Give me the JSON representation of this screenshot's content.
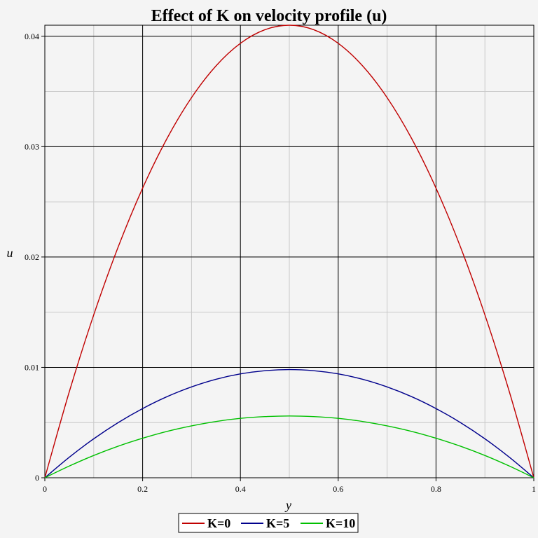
{
  "chart_data": {
    "type": "line",
    "title": "Effect of K on velocity profile (u)",
    "xlabel": "y",
    "ylabel": "u",
    "xlim": [
      0,
      1
    ],
    "ylim": [
      0,
      0.041
    ],
    "x_ticks": [
      0,
      0.2,
      0.4,
      0.6,
      0.8,
      1
    ],
    "x_tick_labels": [
      "0",
      "0.2",
      "0.4",
      "0.6",
      "0.8",
      "1"
    ],
    "y_ticks": [
      0,
      0.01,
      0.02,
      0.03,
      0.04
    ],
    "y_tick_labels": [
      "0",
      "0.01",
      "0.02",
      "0.03",
      "0.04"
    ],
    "grid": true,
    "legend_position": "bottom",
    "x": [
      0,
      0.05,
      0.1,
      0.15,
      0.2,
      0.25,
      0.3,
      0.35,
      0.4,
      0.45,
      0.5,
      0.55,
      0.6,
      0.65,
      0.7,
      0.75,
      0.8,
      0.85,
      0.9,
      0.95,
      1
    ],
    "series": [
      {
        "name": "K=0",
        "color": "#c00000",
        "values": [
          0,
          0.00779,
          0.01476,
          0.02091,
          0.02624,
          0.03075,
          0.03444,
          0.03731,
          0.03936,
          0.04059,
          0.041,
          0.04059,
          0.03936,
          0.03731,
          0.03444,
          0.03075,
          0.02624,
          0.02091,
          0.01476,
          0.00779,
          0
        ]
      },
      {
        "name": "K=5",
        "color": "#00008c",
        "values": [
          0,
          0.00186,
          0.00353,
          0.005,
          0.00627,
          0.00735,
          0.00823,
          0.00892,
          0.00941,
          0.0097,
          0.0098,
          0.0097,
          0.00941,
          0.00892,
          0.00823,
          0.00735,
          0.00627,
          0.005,
          0.00353,
          0.00186,
          0
        ]
      },
      {
        "name": "K=10",
        "color": "#00c000",
        "values": [
          0,
          0.00106,
          0.00202,
          0.00286,
          0.00358,
          0.0042,
          0.0047,
          0.0051,
          0.00538,
          0.00554,
          0.0056,
          0.00554,
          0.00538,
          0.0051,
          0.0047,
          0.0042,
          0.00358,
          0.00286,
          0.00202,
          0.00106,
          0
        ]
      }
    ]
  }
}
